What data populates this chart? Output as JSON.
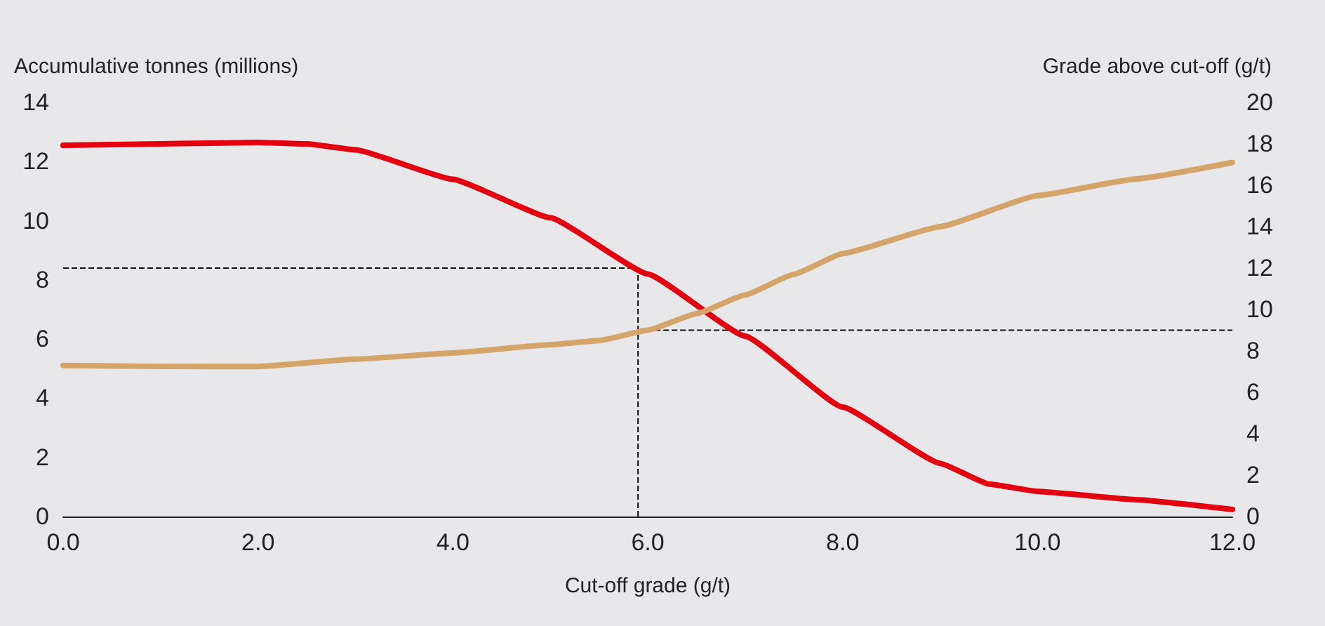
{
  "chart_data": {
    "type": "line",
    "xlabel": "Cut-off grade (g/t)",
    "ylabel": "Accumulative tonnes (millions)",
    "y2label": "Grade above cut-off (g/t)",
    "xlim": [
      0,
      12
    ],
    "xticks": [
      {
        "value": 0,
        "label": "0.0"
      },
      {
        "value": 2,
        "label": "2.0"
      },
      {
        "value": 4,
        "label": "4.0"
      },
      {
        "value": 6,
        "label": "6.0"
      },
      {
        "value": 8,
        "label": "8.0"
      },
      {
        "value": 10,
        "label": "10.0"
      },
      {
        "value": 12,
        "label": "12.0"
      }
    ],
    "ylim": [
      0,
      14
    ],
    "yticks": [
      0,
      2,
      4,
      6,
      8,
      10,
      12,
      14
    ],
    "y2lim": [
      0,
      20
    ],
    "y2ticks": [
      0,
      2,
      4,
      6,
      8,
      10,
      12,
      14,
      16,
      18,
      20
    ],
    "series": [
      {
        "color": "#e3000f",
        "x": [
          0,
          1,
          2,
          2.5,
          3,
          4,
          5,
          6,
          7,
          8,
          9,
          9.5,
          10,
          11,
          12
        ],
        "values": [
          12.55,
          12.6,
          12.65,
          12.6,
          12.4,
          11.4,
          10.1,
          8.2,
          6.1,
          3.7,
          1.8,
          1.1,
          0.85,
          0.57,
          0.24
        ]
      },
      {
        "color": "#d4a46a",
        "axis": "y2",
        "x": [
          0,
          1,
          2,
          3,
          4,
          5,
          5.5,
          6,
          6.5,
          7,
          7.5,
          8,
          9,
          10,
          11,
          12
        ],
        "values": [
          7.3,
          7.25,
          7.25,
          7.6,
          7.9,
          8.3,
          8.5,
          9.0,
          9.8,
          10.7,
          11.7,
          12.7,
          14.0,
          15.5,
          16.3,
          17.1
        ]
      }
    ],
    "ref_lines": [
      {
        "axis": "x",
        "value": 5.9,
        "line_style": "dashed"
      },
      {
        "axis": "y",
        "value": 8.4,
        "line_style": "dashed"
      },
      {
        "axis": "y2",
        "value": 9,
        "line_style": "dashed"
      }
    ],
    "grid": false,
    "marker": "none",
    "line_style": "solid"
  }
}
